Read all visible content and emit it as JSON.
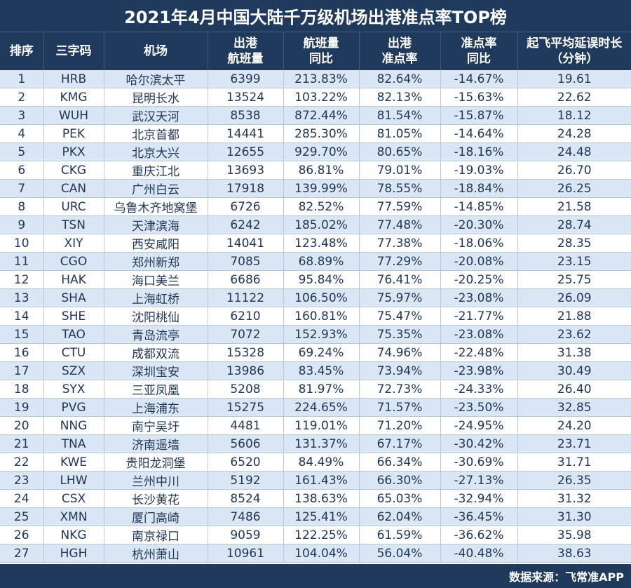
{
  "title": "2021年4月中国大陆千万级机场出港准点率TOP榜",
  "headers": {
    "rank": "排序",
    "code": "三字码",
    "airport": "机场",
    "flights_l1": "出港",
    "flights_l2": "航班量",
    "flights_yoy_l1": "航班量",
    "flights_yoy_l2": "同比",
    "ontime_l1": "出港",
    "ontime_l2": "准点率",
    "ontime_yoy_l1": "准点率",
    "ontime_yoy_l2": "同比",
    "delay_l1": "起飞平均延误时长",
    "delay_l2": "（分钟）"
  },
  "rows": [
    [
      "1",
      "HRB",
      "哈尔滨太平",
      "6399",
      "213.83%",
      "82.64%",
      "-14.67%",
      "19.61"
    ],
    [
      "2",
      "KMG",
      "昆明长水",
      "13524",
      "103.22%",
      "82.13%",
      "-15.63%",
      "22.62"
    ],
    [
      "3",
      "WUH",
      "武汉天河",
      "8538",
      "872.44%",
      "81.54%",
      "-15.87%",
      "18.12"
    ],
    [
      "4",
      "PEK",
      "北京首都",
      "14441",
      "285.30%",
      "81.05%",
      "-14.64%",
      "24.28"
    ],
    [
      "5",
      "PKX",
      "北京大兴",
      "12655",
      "929.70%",
      "80.65%",
      "-18.16%",
      "24.48"
    ],
    [
      "6",
      "CKG",
      "重庆江北",
      "13693",
      "86.81%",
      "79.01%",
      "-19.03%",
      "26.70"
    ],
    [
      "7",
      "CAN",
      "广州白云",
      "17918",
      "139.99%",
      "78.55%",
      "-18.84%",
      "26.25"
    ],
    [
      "8",
      "URC",
      "乌鲁木齐地窝堡",
      "6726",
      "82.52%",
      "77.59%",
      "-14.85%",
      "21.58"
    ],
    [
      "9",
      "TSN",
      "天津滨海",
      "6242",
      "185.02%",
      "77.48%",
      "-20.30%",
      "28.74"
    ],
    [
      "10",
      "XIY",
      "西安咸阳",
      "14041",
      "123.48%",
      "77.38%",
      "-18.06%",
      "28.35"
    ],
    [
      "11",
      "CGO",
      "郑州新郑",
      "7085",
      "68.89%",
      "77.29%",
      "-20.08%",
      "23.15"
    ],
    [
      "12",
      "HAK",
      "海口美兰",
      "6686",
      "95.84%",
      "76.41%",
      "-20.25%",
      "25.75"
    ],
    [
      "13",
      "SHA",
      "上海虹桥",
      "11122",
      "106.50%",
      "75.97%",
      "-23.08%",
      "26.09"
    ],
    [
      "14",
      "SHE",
      "沈阳桃仙",
      "6210",
      "160.81%",
      "75.47%",
      "-21.77%",
      "21.88"
    ],
    [
      "15",
      "TAO",
      "青岛流亭",
      "7072",
      "152.93%",
      "75.35%",
      "-23.08%",
      "23.62"
    ],
    [
      "16",
      "CTU",
      "成都双流",
      "15328",
      "69.24%",
      "74.96%",
      "-22.48%",
      "31.38"
    ],
    [
      "17",
      "SZX",
      "深圳宝安",
      "13986",
      "83.45%",
      "73.94%",
      "-23.98%",
      "30.49"
    ],
    [
      "18",
      "SYX",
      "三亚凤凰",
      "5208",
      "81.97%",
      "72.73%",
      "-24.33%",
      "26.40"
    ],
    [
      "19",
      "PVG",
      "上海浦东",
      "15275",
      "224.65%",
      "71.57%",
      "-23.50%",
      "32.85"
    ],
    [
      "20",
      "NNG",
      "南宁吴圩",
      "4481",
      "119.01%",
      "71.20%",
      "-24.95%",
      "24.20"
    ],
    [
      "21",
      "TNA",
      "济南遥墙",
      "5606",
      "131.37%",
      "67.17%",
      "-30.42%",
      "23.71"
    ],
    [
      "22",
      "KWE",
      "贵阳龙洞堡",
      "6520",
      "84.49%",
      "66.34%",
      "-30.69%",
      "31.71"
    ],
    [
      "23",
      "LHW",
      "兰州中川",
      "5192",
      "161.43%",
      "66.30%",
      "-27.13%",
      "26.35"
    ],
    [
      "24",
      "CSX",
      "长沙黄花",
      "8524",
      "138.63%",
      "65.03%",
      "-32.94%",
      "31.32"
    ],
    [
      "25",
      "XMN",
      "厦门高崎",
      "7486",
      "125.41%",
      "62.04%",
      "-36.45%",
      "31.30"
    ],
    [
      "26",
      "NKG",
      "南京禄口",
      "9059",
      "122.25%",
      "61.59%",
      "-36.62%",
      "35.98"
    ],
    [
      "27",
      "HGH",
      "杭州萧山",
      "10961",
      "104.04%",
      "56.04%",
      "-40.48%",
      "38.63"
    ]
  ],
  "footer": "数据来源：飞常准APP",
  "colors": {
    "header_bg": "#203a5e",
    "row_stripe": "#dbe6f4",
    "row_plain": "#ffffff",
    "text": "#1f3559"
  }
}
